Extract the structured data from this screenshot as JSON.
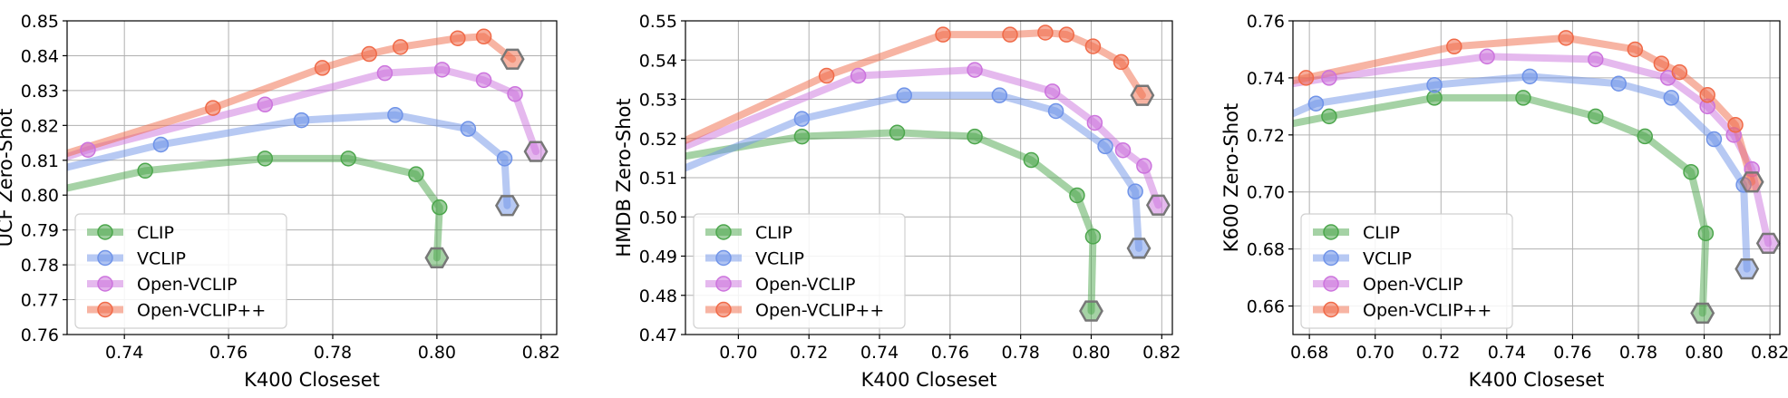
{
  "colors": {
    "CLIP": "#4ca64c",
    "VCLIP": "#6f93e8",
    "Open-VCLIP": "#cc73dd",
    "Open-VCLIP++": "#f06a48",
    "marker_end": "#777777"
  },
  "chart_data": [
    {
      "type": "line",
      "xlabel": "K400 Closeset",
      "ylabel": "UCF Zero-Shot",
      "xlim": [
        0.729,
        0.823
      ],
      "ylim": [
        0.76,
        0.85
      ],
      "xticks": [
        0.74,
        0.76,
        0.78,
        0.8,
        0.82
      ],
      "xtick_labels": [
        "0.74",
        "0.76",
        "0.78",
        "0.80",
        "0.82"
      ],
      "yticks": [
        0.76,
        0.77,
        0.78,
        0.79,
        0.8,
        0.81,
        0.82,
        0.83,
        0.84,
        0.85
      ],
      "ytick_labels": [
        "0.76",
        "0.77",
        "0.78",
        "0.79",
        "0.80",
        "0.81",
        "0.82",
        "0.83",
        "0.84",
        "0.85"
      ],
      "legend_position": "lower-left",
      "series": [
        {
          "name": "CLIP",
          "x": [
            0.729,
            0.744,
            0.767,
            0.783,
            0.796,
            0.8005,
            0.8
          ],
          "y": [
            0.802,
            0.807,
            0.8105,
            0.8105,
            0.806,
            0.7965,
            0.782
          ],
          "markers": [
            false,
            true,
            true,
            true,
            true,
            true,
            true
          ]
        },
        {
          "name": "VCLIP",
          "x": [
            0.729,
            0.747,
            0.774,
            0.792,
            0.806,
            0.813,
            0.8135
          ],
          "y": [
            0.808,
            0.8145,
            0.8215,
            0.823,
            0.819,
            0.8105,
            0.797
          ],
          "markers": [
            false,
            true,
            true,
            true,
            true,
            true,
            true
          ]
        },
        {
          "name": "Open-VCLIP",
          "x": [
            0.729,
            0.733,
            0.767,
            0.79,
            0.801,
            0.809,
            0.815,
            0.819
          ],
          "y": [
            0.811,
            0.813,
            0.826,
            0.835,
            0.836,
            0.833,
            0.829,
            0.8125
          ],
          "markers": [
            false,
            true,
            true,
            true,
            true,
            true,
            true,
            true
          ]
        },
        {
          "name": "Open-VCLIP++",
          "x": [
            0.729,
            0.757,
            0.778,
            0.787,
            0.793,
            0.804,
            0.809,
            0.8145
          ],
          "y": [
            0.812,
            0.825,
            0.8365,
            0.8405,
            0.8425,
            0.845,
            0.8455,
            0.839
          ],
          "markers": [
            false,
            true,
            true,
            true,
            true,
            true,
            true,
            true
          ]
        }
      ]
    },
    {
      "type": "line",
      "xlabel": "K400 Closeset",
      "ylabel": "HMDB Zero-Shot",
      "xlim": [
        0.685,
        0.823
      ],
      "ylim": [
        0.47,
        0.55
      ],
      "xticks": [
        0.7,
        0.72,
        0.74,
        0.76,
        0.78,
        0.8,
        0.82
      ],
      "xtick_labels": [
        "0.70",
        "0.72",
        "0.74",
        "0.76",
        "0.78",
        "0.80",
        "0.82"
      ],
      "yticks": [
        0.47,
        0.48,
        0.49,
        0.5,
        0.51,
        0.52,
        0.53,
        0.54,
        0.55
      ],
      "ytick_labels": [
        "0.47",
        "0.48",
        "0.49",
        "0.50",
        "0.51",
        "0.52",
        "0.53",
        "0.54",
        "0.55"
      ],
      "legend_position": "lower-left",
      "series": [
        {
          "name": "CLIP",
          "x": [
            0.685,
            0.718,
            0.745,
            0.767,
            0.783,
            0.796,
            0.8005,
            0.8
          ],
          "y": [
            0.5155,
            0.5205,
            0.5215,
            0.5205,
            0.5145,
            0.5055,
            0.495,
            0.476
          ],
          "markers": [
            false,
            true,
            true,
            true,
            true,
            true,
            true,
            true
          ]
        },
        {
          "name": "VCLIP",
          "x": [
            0.685,
            0.718,
            0.747,
            0.774,
            0.79,
            0.804,
            0.8125,
            0.8135
          ],
          "y": [
            0.5125,
            0.525,
            0.531,
            0.531,
            0.527,
            0.518,
            0.5065,
            0.492
          ],
          "markers": [
            false,
            true,
            true,
            true,
            true,
            true,
            true,
            true
          ]
        },
        {
          "name": "Open-VCLIP",
          "x": [
            0.685,
            0.734,
            0.767,
            0.789,
            0.801,
            0.809,
            0.815,
            0.819
          ],
          "y": [
            0.518,
            0.536,
            0.5375,
            0.532,
            0.524,
            0.517,
            0.513,
            0.503
          ],
          "markers": [
            false,
            true,
            true,
            true,
            true,
            true,
            true,
            true
          ]
        },
        {
          "name": "Open-VCLIP++",
          "x": [
            0.685,
            0.725,
            0.758,
            0.777,
            0.787,
            0.793,
            0.8005,
            0.8085,
            0.8145
          ],
          "y": [
            0.5195,
            0.536,
            0.5465,
            0.5465,
            0.547,
            0.5465,
            0.5435,
            0.5395,
            0.531
          ],
          "markers": [
            false,
            true,
            true,
            true,
            true,
            true,
            true,
            true,
            true
          ]
        }
      ]
    },
    {
      "type": "line",
      "xlabel": "K400 Closeset",
      "ylabel": "K600 Zero-Shot",
      "xlim": [
        0.675,
        0.823
      ],
      "ylim": [
        0.65,
        0.76
      ],
      "xticks": [
        0.68,
        0.7,
        0.72,
        0.74,
        0.76,
        0.78,
        0.8,
        0.82
      ],
      "xtick_labels": [
        "0.68",
        "0.70",
        "0.72",
        "0.74",
        "0.76",
        "0.78",
        "0.80",
        "0.82"
      ],
      "yticks": [
        0.66,
        0.68,
        0.7,
        0.72,
        0.74,
        0.76
      ],
      "ytick_labels": [
        "0.66",
        "0.68",
        "0.70",
        "0.72",
        "0.74",
        "0.76"
      ],
      "legend_position": "lower-left",
      "series": [
        {
          "name": "CLIP",
          "x": [
            0.675,
            0.686,
            0.718,
            0.745,
            0.767,
            0.782,
            0.796,
            0.8005,
            0.7995
          ],
          "y": [
            0.724,
            0.7265,
            0.733,
            0.733,
            0.7265,
            0.7195,
            0.707,
            0.6855,
            0.6575
          ],
          "markers": [
            false,
            true,
            true,
            true,
            true,
            true,
            true,
            true,
            true
          ]
        },
        {
          "name": "VCLIP",
          "x": [
            0.675,
            0.682,
            0.718,
            0.747,
            0.774,
            0.79,
            0.803,
            0.812,
            0.813
          ],
          "y": [
            0.7275,
            0.731,
            0.7375,
            0.7405,
            0.738,
            0.733,
            0.7185,
            0.7025,
            0.673
          ],
          "markers": [
            false,
            true,
            true,
            true,
            true,
            true,
            true,
            true,
            true
          ]
        },
        {
          "name": "Open-VCLIP",
          "x": [
            0.675,
            0.686,
            0.734,
            0.767,
            0.789,
            0.801,
            0.809,
            0.8145,
            0.8195
          ],
          "y": [
            0.738,
            0.74,
            0.7475,
            0.7465,
            0.74,
            0.73,
            0.72,
            0.708,
            0.682
          ],
          "markers": [
            false,
            true,
            true,
            true,
            true,
            true,
            true,
            true,
            true
          ]
        },
        {
          "name": "Open-VCLIP++",
          "x": [
            0.675,
            0.679,
            0.724,
            0.758,
            0.779,
            0.787,
            0.7925,
            0.801,
            0.8095,
            0.8145
          ],
          "y": [
            0.739,
            0.74,
            0.751,
            0.754,
            0.75,
            0.745,
            0.742,
            0.734,
            0.7235,
            0.7035
          ],
          "markers": [
            false,
            true,
            true,
            true,
            true,
            true,
            true,
            true,
            true,
            true
          ]
        }
      ]
    }
  ]
}
